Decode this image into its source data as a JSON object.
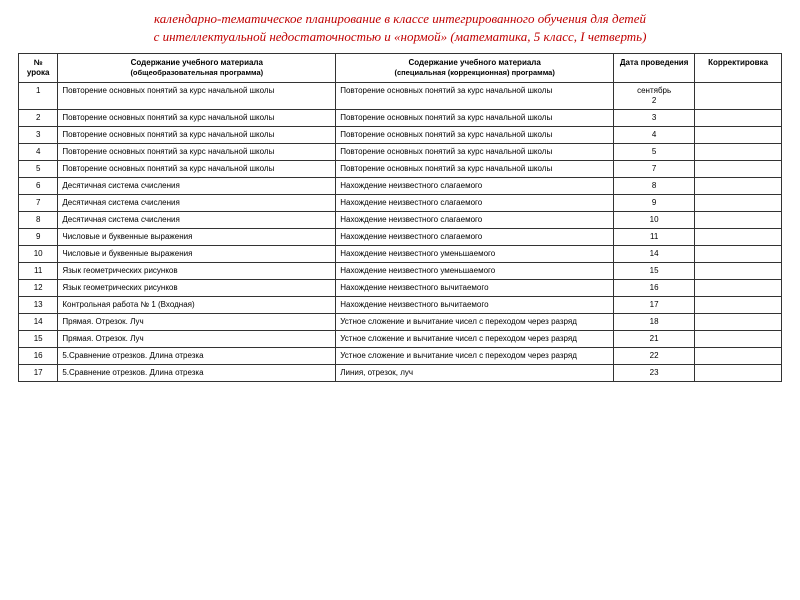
{
  "title_line1": "календарно-тематическое планирование в классе интегрированного обучения для детей",
  "title_line2": "с интеллектуальной недостаточностью и «нормой» (математика, 5 класс, I четверть)",
  "headers": {
    "num": "№ урока",
    "content1_main": "Содержание учебного материала",
    "content1_sub": "(общеобразовательная программа)",
    "content2_main": "Содержание учебного материала",
    "content2_sub": "(специальная (коррекционная) программа)",
    "date": "Дата проведения",
    "corr": "Корректировка"
  },
  "rows": [
    {
      "n": "1",
      "c1": "Повторение основных понятий за курс начальной школы",
      "c2": "Повторение основных понятий за курс начальной школы",
      "d": "сентябрь\n2",
      "k": ""
    },
    {
      "n": "2",
      "c1": "Повторение основных понятий за курс начальной школы",
      "c2": "Повторение основных понятий за курс начальной школы",
      "d": "3",
      "k": ""
    },
    {
      "n": "3",
      "c1": "Повторение основных понятий за курс начальной школы",
      "c2": "Повторение основных понятий за курс начальной школы",
      "d": "4",
      "k": ""
    },
    {
      "n": "4",
      "c1": "Повторение основных понятий за курс начальной школы",
      "c2": "Повторение основных понятий за курс начальной школы",
      "d": "5",
      "k": ""
    },
    {
      "n": "5",
      "c1": "Повторение основных понятий за курс начальной школы",
      "c2": "Повторение основных понятий за курс начальной школы",
      "d": "7",
      "k": ""
    },
    {
      "n": "6",
      "c1": "Десятичная система счисления",
      "c2": "Нахождение неизвестного слагаемого",
      "d": "8",
      "k": ""
    },
    {
      "n": "7",
      "c1": "Десятичная система счисления",
      "c2": "Нахождение неизвестного слагаемого",
      "d": "9",
      "k": ""
    },
    {
      "n": "8",
      "c1": "Десятичная система счисления",
      "c2": "Нахождение неизвестного слагаемого",
      "d": "10",
      "k": ""
    },
    {
      "n": "9",
      "c1": "Числовые и буквенные выражения",
      "c2": "Нахождение неизвестного слагаемого",
      "d": "11",
      "k": ""
    },
    {
      "n": "10",
      "c1": "Числовые и буквенные выражения",
      "c2": "Нахождение неизвестного уменьшаемого",
      "d": "14",
      "k": ""
    },
    {
      "n": "11",
      "c1": "Язык геометрических рисунков",
      "c2": "Нахождение неизвестного уменьшаемого",
      "d": "15",
      "k": ""
    },
    {
      "n": "12",
      "c1": "Язык геометрических рисунков",
      "c2": "Нахождение неизвестного вычитаемого",
      "d": "16",
      "k": ""
    },
    {
      "n": "13",
      "c1": "Контрольная работа № 1 (Входная)",
      "c2": "Нахождение неизвестного вычитаемого",
      "d": "17",
      "k": ""
    },
    {
      "n": "14",
      "c1": "Прямая. Отрезок. Луч",
      "c2": "Устное сложение и вычитание чисел с переходом через разряд",
      "d": "18",
      "k": ""
    },
    {
      "n": "15",
      "c1": "Прямая. Отрезок. Луч",
      "c2": "Устное сложение и вычитание чисел с переходом через разряд",
      "d": "21",
      "k": ""
    },
    {
      "n": "16",
      "c1": "5.Сравнение отрезков. Длина отрезка",
      "c2": "Устное сложение и вычитание чисел с переходом через разряд",
      "d": "22",
      "k": ""
    },
    {
      "n": "17",
      "c1": "5.Сравнение отрезков. Длина отрезка",
      "c2": "Линия, отрезок, луч",
      "d": "23",
      "k": ""
    }
  ]
}
